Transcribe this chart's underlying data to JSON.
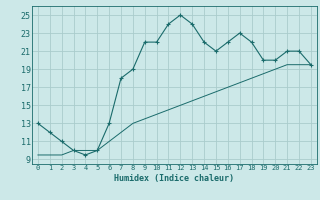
{
  "xlabel": "Humidex (Indice chaleur)",
  "ylabel": "",
  "bg_color": "#cce8e8",
  "grid_color": "#aacccc",
  "line_color": "#1a6b6b",
  "xlim": [
    -0.5,
    23.5
  ],
  "ylim": [
    8.5,
    26.0
  ],
  "xticks": [
    0,
    1,
    2,
    3,
    4,
    5,
    6,
    7,
    8,
    9,
    10,
    11,
    12,
    13,
    14,
    15,
    16,
    17,
    18,
    19,
    20,
    21,
    22,
    23
  ],
  "yticks": [
    9,
    11,
    13,
    15,
    17,
    19,
    21,
    23,
    25
  ],
  "curve1_x": [
    0,
    1,
    2,
    3,
    4,
    5,
    6,
    7,
    8,
    9,
    10,
    11,
    12,
    13,
    14,
    15,
    16,
    17,
    18,
    19,
    20,
    21,
    22,
    23
  ],
  "curve1_y": [
    13,
    12,
    11,
    10,
    9.5,
    10,
    13,
    18,
    19,
    22,
    22,
    24,
    25,
    24,
    22,
    21,
    22,
    23,
    22,
    20,
    20,
    21,
    21,
    19.5
  ],
  "curve2_x": [
    0,
    1,
    2,
    3,
    4,
    5,
    6,
    7,
    8,
    9,
    10,
    11,
    12,
    13,
    14,
    15,
    16,
    17,
    18,
    19,
    20,
    21,
    22,
    23
  ],
  "curve2_y": [
    9.5,
    9.5,
    9.5,
    10,
    10,
    10,
    11,
    12,
    13,
    13.5,
    14,
    14.5,
    15,
    15.5,
    16,
    16.5,
    17,
    17.5,
    18,
    18.5,
    19,
    19.5,
    19.5,
    19.5
  ]
}
